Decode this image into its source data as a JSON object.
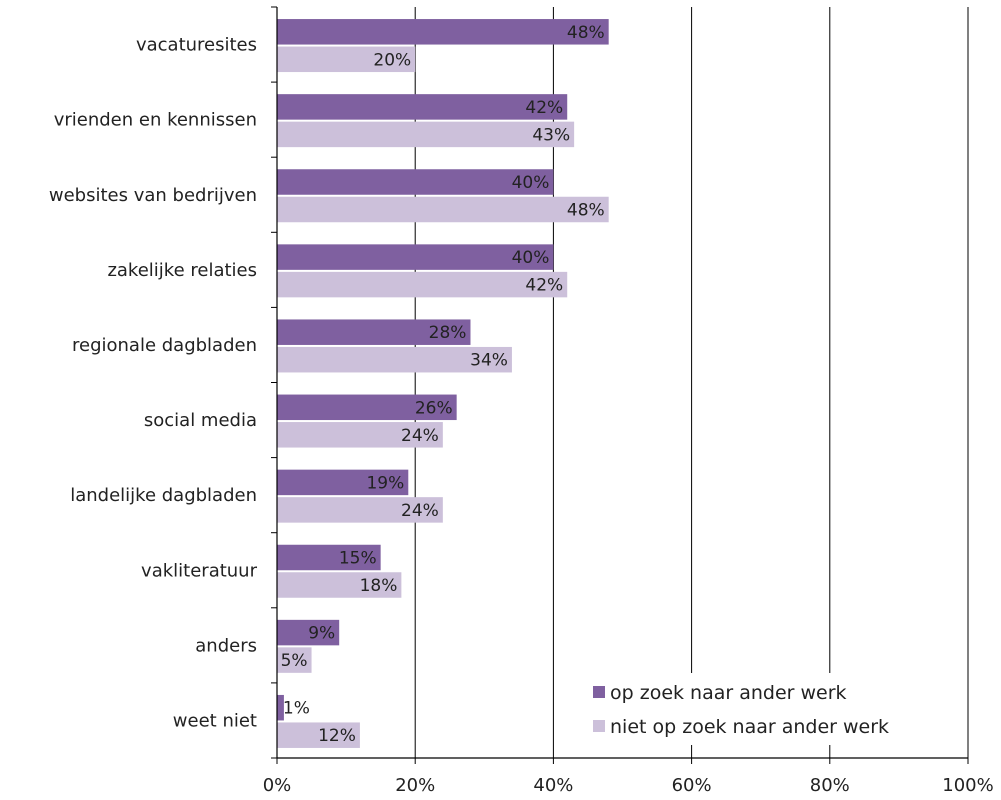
{
  "chart_data": {
    "type": "bar",
    "orientation": "horizontal",
    "categories": [
      "vacaturesites",
      "vrienden en kennissen",
      "websites van bedrijven",
      "zakelijke relaties",
      "regionale dagbladen",
      "social media",
      "landelijke dagbladen",
      "vakliteratuur",
      "anders",
      "weet niet"
    ],
    "series": [
      {
        "name": "op zoek naar ander werk",
        "color": "#7f60a0",
        "values": [
          48,
          42,
          40,
          40,
          28,
          26,
          19,
          15,
          9,
          1
        ],
        "labels": [
          "48%",
          "42%",
          "40%",
          "40%",
          "28%",
          "26%",
          "19%",
          "15%",
          "9%",
          "1%"
        ]
      },
      {
        "name": "niet op zoek naar ander werk",
        "color": "#ccc0da",
        "values": [
          20,
          43,
          48,
          42,
          34,
          24,
          24,
          18,
          5,
          12
        ],
        "labels": [
          "20%",
          "43%",
          "48%",
          "42%",
          "34%",
          "24%",
          "24%",
          "18%",
          "5%",
          "12%"
        ]
      }
    ],
    "x_ticks": [
      "0%",
      "20%",
      "40%",
      "60%",
      "80%",
      "100%"
    ],
    "xlim": [
      0,
      100
    ],
    "grid": "vertical gridlines at each tick",
    "legend_position": "bottom-right",
    "title": "",
    "xlabel": "",
    "ylabel": ""
  }
}
